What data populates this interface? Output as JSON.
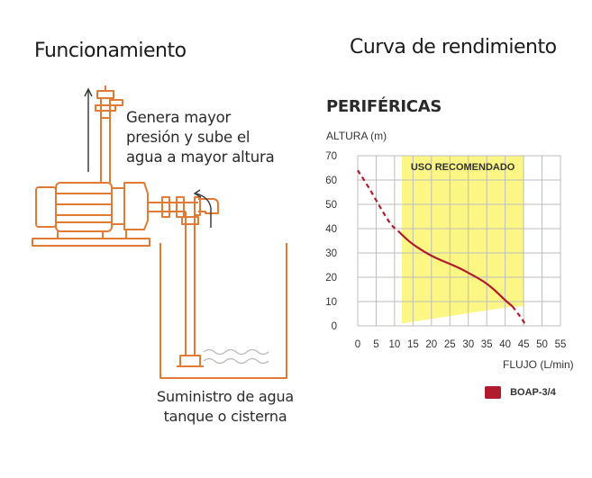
{
  "left": {
    "title": "Funcionamiento",
    "description_lines": [
      "Genera mayor",
      "presión y sube el",
      "agua a mayor altura"
    ],
    "caption_lines": [
      "Suministro de agua",
      "tanque o cisterna"
    ]
  },
  "right": {
    "title": "Curva de rendimiento"
  },
  "colors": {
    "accent": "#e07a35",
    "curve": "#b01c2e",
    "zone": "#fbf46e",
    "grid": "#bdbdbd"
  },
  "chart_data": {
    "type": "line",
    "title": "PERIFÉRICAS",
    "ylabel": "ALTURA (m)",
    "xlabel": "FLUJO (L/min)",
    "xlim": [
      0,
      55
    ],
    "ylim": [
      0,
      70
    ],
    "x_ticks": [
      "0",
      "5",
      "10",
      "15",
      "20",
      "25",
      "30",
      "35",
      "40",
      "45",
      "50",
      "55"
    ],
    "y_ticks": [
      "0",
      "10",
      "20",
      "30",
      "40",
      "50",
      "60",
      "70"
    ],
    "grid": true,
    "recommended_zone": {
      "label": "USO RECOMENDADO",
      "x_range": [
        12,
        45
      ],
      "bottom_edge": [
        [
          12,
          1
        ],
        [
          42,
          8
        ]
      ]
    },
    "series": [
      {
        "name": "BOAP-3/4",
        "solid": [
          [
            11,
            39
          ],
          [
            13,
            36
          ],
          [
            15,
            33.5
          ],
          [
            18,
            30.5
          ],
          [
            21,
            28
          ],
          [
            25,
            25.5
          ],
          [
            28,
            23.5
          ],
          [
            31,
            21
          ],
          [
            34,
            18.5
          ],
          [
            37,
            15
          ],
          [
            40,
            10.5
          ],
          [
            42,
            8
          ]
        ],
        "dashed_start": [
          [
            0,
            64
          ],
          [
            3,
            57
          ],
          [
            6,
            49
          ],
          [
            9,
            41.5
          ],
          [
            11,
            39
          ]
        ],
        "dashed_end": [
          [
            42,
            8
          ],
          [
            43.5,
            5
          ],
          [
            44.5,
            3
          ],
          [
            45.5,
            0.5
          ]
        ]
      }
    ]
  }
}
